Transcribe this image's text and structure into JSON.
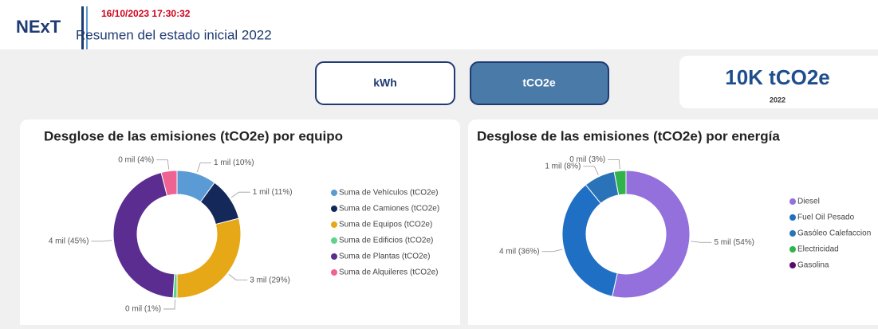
{
  "header": {
    "logo": "NExT",
    "timestamp": "16/10/2023 17:30:32",
    "title": "Resumen del estado inicial 2022"
  },
  "buttons": [
    "kWh",
    "tCO2e"
  ],
  "kpi": {
    "value": "10K tCO2e",
    "caption": "2022"
  },
  "chart_data": [
    {
      "type": "donut",
      "title": "Desglose de las emisiones (tCO2e) por equipo",
      "categories": [
        "Suma de Vehículos (tCO2e)",
        "Suma de Camiones (tCO2e)",
        "Suma de Equipos (tCO2e)",
        "Suma de Edificios (tCO2e)",
        "Suma de Plantas (tCO2e)",
        "Suma de Alquileres (tCO2e)"
      ],
      "values": [
        10,
        11,
        29,
        1,
        45,
        4
      ],
      "value_labels": [
        "1 mil (10%)",
        "1 mil (11%)",
        "3 mil (29%)",
        "0 mil (1%)",
        "4 mil (45%)",
        "0 mil (4%)"
      ],
      "colors": [
        "#5b9bd5",
        "#14285a",
        "#e6a817",
        "#5fd38d",
        "#5c2d91",
        "#f06292"
      ]
    },
    {
      "type": "donut",
      "title": "Desglose de las emisiones (tCO2e) por energía",
      "categories": [
        "Diesel",
        "Fuel Oil Pesado",
        "Gasóleo Calefaccion",
        "Electricidad",
        "Gasolina"
      ],
      "values": [
        54,
        36,
        8,
        3,
        0
      ],
      "value_labels": [
        "5 mil (54%)",
        "4 mil (36%)",
        "1 mil (8%)",
        "0 mil (3%)",
        null
      ],
      "colors": [
        "#9370db",
        "#1f6fc5",
        "#2a73b8",
        "#2fb34a",
        "#5a0a6e"
      ]
    }
  ]
}
